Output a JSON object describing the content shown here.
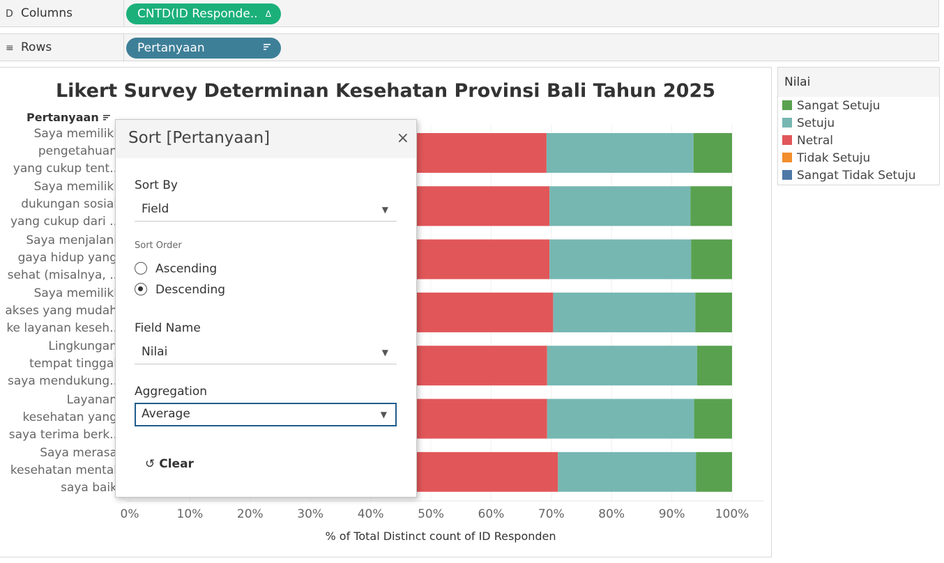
{
  "columns_shelf": {
    "label": "Columns",
    "icon": "columns-icon",
    "pill": "CNTD(ID Responde..",
    "pill_icon": "Δ",
    "pill_color": "#1bb07a"
  },
  "rows_shelf": {
    "label": "Rows",
    "icon": "rows-icon",
    "pill": "Pertanyaan",
    "pill_icon": "sort-icon",
    "pill_color": "#3e7f98"
  },
  "rows_header": "Pertanyaan",
  "legend": {
    "title": "Nilai",
    "items": [
      {
        "label": "Sangat Setuju",
        "color": "#59a14f"
      },
      {
        "label": "Setuju",
        "color": "#76b7b2"
      },
      {
        "label": "Netral",
        "color": "#e15759"
      },
      {
        "label": "Tidak Setuju",
        "color": "#f28e2b"
      },
      {
        "label": "Sangat Tidak Setuju",
        "color": "#4e79a7"
      }
    ]
  },
  "chart_data": {
    "type": "bar",
    "orientation": "horizontal",
    "stacked": true,
    "title": "Likert Survey Determinan Kesehatan Provinsi Bali Tahun 2025",
    "xlabel": "% of Total Distinct count of ID Responden",
    "ylabel": "Pertanyaan",
    "xlim": [
      0,
      100
    ],
    "xticks": [
      "0%",
      "10%",
      "20%",
      "30%",
      "40%",
      "50%",
      "60%",
      "70%",
      "80%",
      "90%",
      "100%"
    ],
    "categories": [
      [
        "Saya memiliki",
        "pengetahuan",
        "yang cukup tent.."
      ],
      [
        "Saya memiliki",
        "dukungan sosial",
        "yang cukup dari .."
      ],
      [
        "Saya menjalani",
        "gaya hidup yang",
        "sehat (misalnya, .."
      ],
      [
        "Saya memiliki",
        "akses yang mudah",
        "ke layanan keseh.."
      ],
      [
        "Lingkungan",
        "tempat tinggal",
        "saya mendukung.."
      ],
      [
        "Layanan",
        "kesehatan yang",
        "saya terima berk.."
      ],
      [
        "Saya merasa",
        "kesehatan mental",
        "saya baik"
      ]
    ],
    "series": [
      {
        "name": "Sangat Tidak Setuju",
        "color": "#4e79a7",
        "values": [
          0,
          0,
          0,
          0,
          0,
          0,
          0
        ]
      },
      {
        "name": "Tidak Setuju",
        "color": "#f28e2b",
        "values": [
          0,
          0,
          0,
          0,
          0,
          0,
          0
        ]
      },
      {
        "name": "Netral",
        "color": "#e15759",
        "values": [
          69.2,
          69.7,
          69.7,
          70.3,
          69.3,
          69.3,
          71.1
        ]
      },
      {
        "name": "Setuju",
        "color": "#76b7b2",
        "values": [
          24.4,
          23.4,
          23.5,
          23.6,
          24.9,
          24.4,
          22.9
        ]
      },
      {
        "name": "Sangat Setuju",
        "color": "#59a14f",
        "values": [
          6.4,
          6.9,
          6.8,
          6.1,
          5.8,
          6.3,
          6.0
        ]
      }
    ]
  },
  "sort_dialog": {
    "title": "Sort [Pertanyaan]",
    "close": "×",
    "sort_by_label": "Sort By",
    "sort_by_value": "Field",
    "sort_order_label": "Sort Order",
    "ascending": "Ascending",
    "descending": "Descending",
    "field_name_label": "Field Name",
    "field_name_value": "Nilai",
    "aggregation_label": "Aggregation",
    "aggregation_value": "Average",
    "clear": "Clear"
  }
}
